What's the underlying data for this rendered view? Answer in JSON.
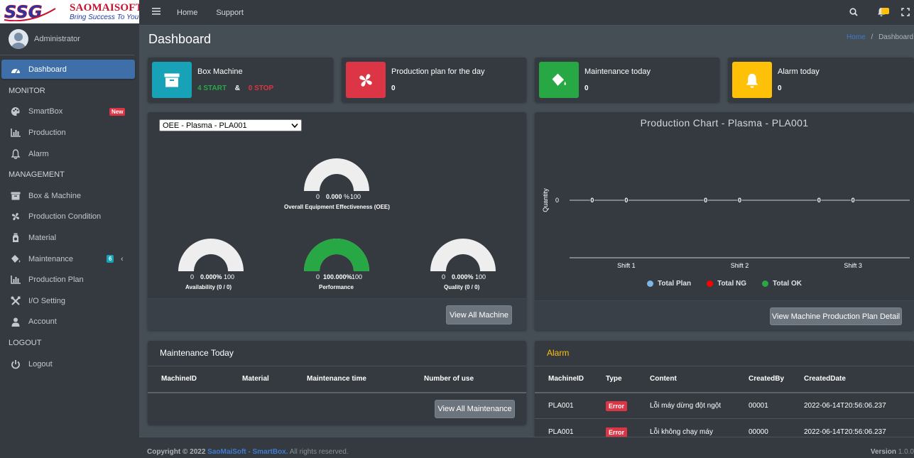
{
  "brand": {
    "name": "SAOMAISOFT",
    "tagline": "Bring Success To You",
    "logo_text": "SSG"
  },
  "user": {
    "name": "Administrator"
  },
  "nav": {
    "dashboard": "Dashboard",
    "monitor_header": "MONITOR",
    "smartbox": "SmartBox",
    "smartbox_badge": "New",
    "production": "Production",
    "alarm": "Alarm",
    "management_header": "MANAGEMENT",
    "box_machine": "Box & Machine",
    "production_condition": "Production Condition",
    "material": "Material",
    "maintenance": "Maintenance",
    "maintenance_badge": "6",
    "production_plan": "Production Plan",
    "io_setting": "I/O Setting",
    "account": "Account",
    "logout_header": "LOGOUT",
    "logout": "Logout"
  },
  "topbar": {
    "home": "Home",
    "support": "Support"
  },
  "page": {
    "title": "Dashboard",
    "breadcrumb_home": "Home",
    "breadcrumb_sep": "/",
    "breadcrumb_current": "Dashboard"
  },
  "info_boxes": {
    "box_machine": {
      "title": "Box Machine",
      "start": "4 START",
      "amp": "&",
      "stop": "0 STOP",
      "color": "#17a2b8"
    },
    "production_plan": {
      "title": "Production plan for the day",
      "value": "0",
      "color": "#dc3545"
    },
    "maintenance": {
      "title": "Maintenance today",
      "value": "0",
      "color": "#28a745"
    },
    "alarm": {
      "title": "Alarm today",
      "value": "0",
      "color": "#ffc107"
    }
  },
  "oee": {
    "selected_machine": "OEE - Plasma - PLA001",
    "gauges": [
      {
        "key": "oee",
        "min": "0",
        "max": "100",
        "value_text": "0.000",
        "unit": "%",
        "value": 0,
        "label": "Overall Equipment Effectiveness (OEE)"
      },
      {
        "key": "availability",
        "min": "0",
        "max": "100",
        "value_text": "0.000%",
        "unit": "",
        "value": 0,
        "label": "Availability (0 / 0)"
      },
      {
        "key": "performance",
        "min": "0",
        "max": "100",
        "value_text": "100.000%",
        "unit": "",
        "value": 100,
        "label": "Performance"
      },
      {
        "key": "quality",
        "min": "0",
        "max": "100",
        "value_text": "0.000%",
        "unit": "",
        "value": 0,
        "label": "Quality (0 / 0)"
      }
    ],
    "button": "View All Machine"
  },
  "chart_data": {
    "type": "line",
    "title": "Production Chart - Plasma - PLA001",
    "ylabel": "Quantity",
    "xlabel": "",
    "y_ticks": [
      "0"
    ],
    "categories": [
      "Shift 1",
      "Shift 2",
      "Shift 3"
    ],
    "series": [
      {
        "name": "Total Plan",
        "values": [
          0,
          0,
          0
        ],
        "color": "#7cb5ec"
      },
      {
        "name": "Total NG",
        "values": [
          0,
          0,
          0
        ],
        "color": "#ff0000"
      },
      {
        "name": "Total OK",
        "values": [
          0,
          0,
          0
        ],
        "color": "#28a745"
      }
    ],
    "point_labels": [
      "0",
      "0",
      "0",
      "0",
      "0",
      "0"
    ],
    "legend_position": "bottom",
    "button": "View Machine Production Plan Detail"
  },
  "maintenance_today": {
    "title": "Maintenance Today",
    "columns": [
      "MachineID",
      "Material",
      "Maintenance time",
      "Number of use"
    ],
    "button": "View All Maintenance"
  },
  "alarm_table": {
    "title": "Alarm",
    "title_color": "#ffc107",
    "columns": [
      "MachineID",
      "Type",
      "Content",
      "CreatedBy",
      "CreatedDate"
    ],
    "rows": [
      {
        "machine": "PLA001",
        "type": "Error",
        "content": "Lỗi máy dừng đột ngột",
        "created_by": "00001",
        "created_date": "2022-06-14T20:56:06.237"
      },
      {
        "machine": "PLA001",
        "type": "Error",
        "content": "Lỗi không chạy máy",
        "created_by": "00000",
        "created_date": "2022-06-14T20:56:06.237"
      }
    ]
  },
  "footer": {
    "copyright": "Copyright © 2022",
    "brand_link": "SaoMaiSoft - SmartBox.",
    "rights": "All rights reserved.",
    "version_label": "Version",
    "version": "1.0.0"
  }
}
